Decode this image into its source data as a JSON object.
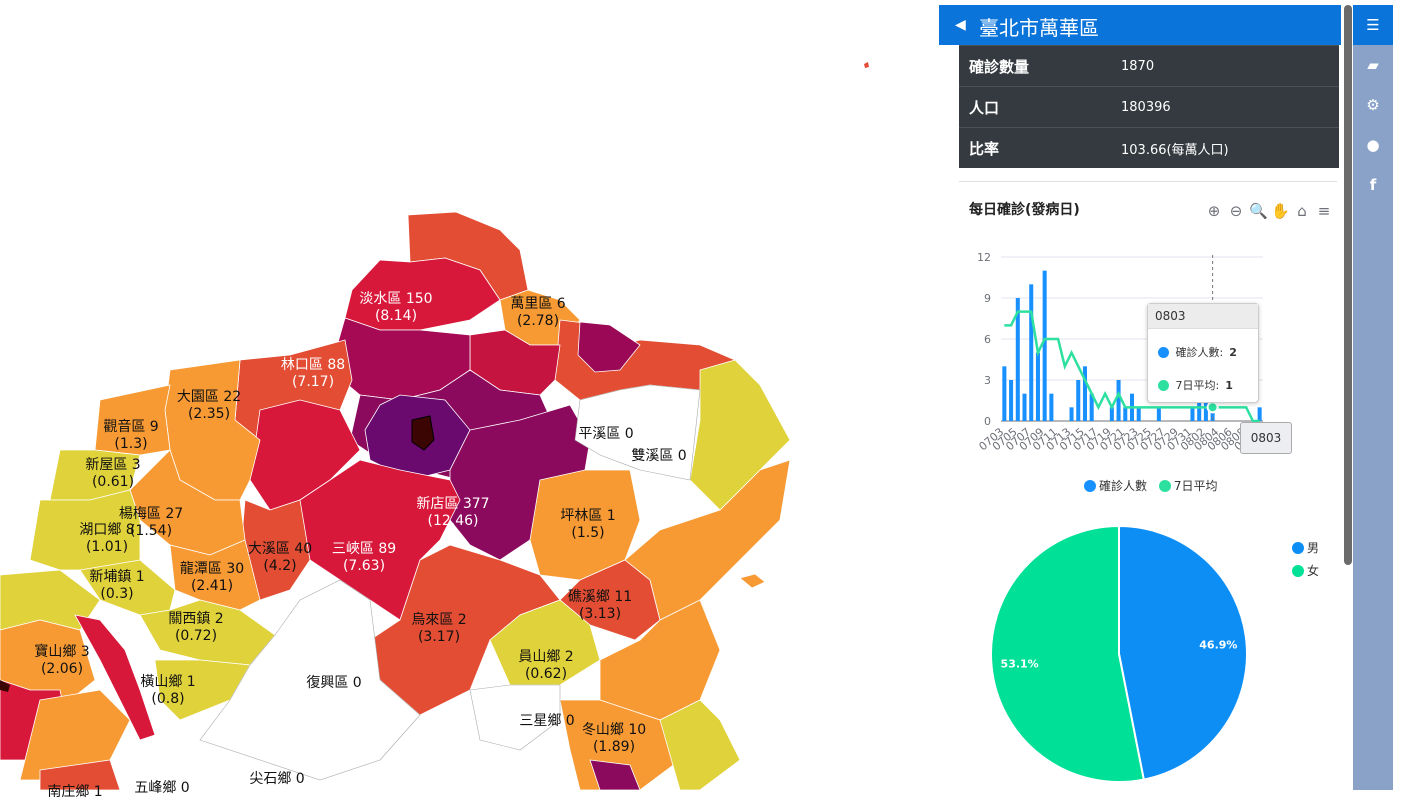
{
  "colors": {
    "panel_blue": "#0a74da",
    "table_dark": "#343a40",
    "series_confirmed": "#1890ff",
    "series_avg": "#2de0a0",
    "pie_male": "#0d8ef5",
    "pie_female": "#00e096",
    "rail": "#8aa2c8"
  },
  "map": {
    "labels": [
      {
        "name": "淡水區 150",
        "ratio": "(8.14)"
      },
      {
        "name": "萬里區 6",
        "ratio": "(2.78)"
      },
      {
        "name": "林口區 88",
        "ratio": "(7.17)"
      },
      {
        "name": "大園區 22",
        "ratio": "(2.35)"
      },
      {
        "name": "觀音區 9",
        "ratio": "(1.3)"
      },
      {
        "name": "新屋區 3",
        "ratio": "(0.61)"
      },
      {
        "name": "楊梅區 27",
        "ratio": "(1.54)"
      },
      {
        "name": "湖口鄉 8",
        "ratio": "(1.01)"
      },
      {
        "name": "新埔鎮 1",
        "ratio": "(0.3)"
      },
      {
        "name": "龍潭區 30",
        "ratio": "(2.41)"
      },
      {
        "name": "大溪區 40",
        "ratio": "(4.2)"
      },
      {
        "name": "三峽區 89",
        "ratio": "(7.63)"
      },
      {
        "name": "新店區 377",
        "ratio": "(12.46)"
      },
      {
        "name": "平溪區 0",
        "ratio": ""
      },
      {
        "name": "雙溪區 0",
        "ratio": ""
      },
      {
        "name": "坪林區 1",
        "ratio": "(1.5)"
      },
      {
        "name": "礁溪鄉 11",
        "ratio": "(3.13)"
      },
      {
        "name": "烏來區 2",
        "ratio": "(3.17)"
      },
      {
        "name": "關西鎮 2",
        "ratio": "(0.72)"
      },
      {
        "name": "寶山鄉 3",
        "ratio": "(2.06)"
      },
      {
        "name": "橫山鄉 1",
        "ratio": "(0.8)"
      },
      {
        "name": "復興區 0",
        "ratio": ""
      },
      {
        "name": "員山鄉 2",
        "ratio": "(0.62)"
      },
      {
        "name": "三星鄉 0",
        "ratio": ""
      },
      {
        "name": "冬山鄉 10",
        "ratio": "(1.89)"
      },
      {
        "name": "尖石鄉 0",
        "ratio": ""
      },
      {
        "name": "五峰鄉 0",
        "ratio": ""
      },
      {
        "name": "南庄鄉 1",
        "ratio": ""
      }
    ]
  },
  "panel": {
    "title": "臺北市萬華區",
    "back_icon": "caret-left-icon",
    "info": [
      {
        "key": "確診數量",
        "value": "1870"
      },
      {
        "key": "人口",
        "value": "180396"
      },
      {
        "key": "比率",
        "value": "103.66(每萬人口)"
      }
    ],
    "chart_title": "每日確診(發病日)",
    "toolbar": [
      "zoom-in-icon",
      "zoom-out-icon",
      "zoom-select-icon",
      "pan-icon",
      "home-icon",
      "menu-icon"
    ]
  },
  "chart_data": [
    {
      "type": "bar",
      "title": "每日確診(發病日)",
      "xlabel": "",
      "ylabel": "",
      "ylim": [
        0,
        12
      ],
      "yticks": [
        0,
        3,
        6,
        9,
        12
      ],
      "x_tick_labels": [
        "0703",
        "0705",
        "0707",
        "0709",
        "0711",
        "0713",
        "0715",
        "0717",
        "0719",
        "0721",
        "0723",
        "0725",
        "0727",
        "0729",
        "0731",
        "0802",
        "0804",
        "0806",
        "0808",
        "0810"
      ],
      "categories": [
        "0703",
        "0704",
        "0705",
        "0706",
        "0707",
        "0708",
        "0709",
        "0710",
        "0711",
        "0712",
        "0713",
        "0714",
        "0715",
        "0716",
        "0717",
        "0718",
        "0719",
        "0720",
        "0721",
        "0722",
        "0723",
        "0724",
        "0725",
        "0726",
        "0727",
        "0728",
        "0729",
        "0730",
        "0731",
        "0801",
        "0802",
        "0803",
        "0804",
        "0805",
        "0806",
        "0807",
        "0808",
        "0809",
        "0810"
      ],
      "series": [
        {
          "name": "確診人數",
          "type": "bar",
          "values": [
            4,
            3,
            9,
            2,
            10,
            5,
            11,
            2,
            0,
            0,
            1,
            3,
            4,
            2,
            0,
            0,
            1,
            3,
            1,
            2,
            1,
            0,
            0,
            1,
            0,
            0,
            0,
            0,
            1,
            2,
            2,
            2,
            0,
            0,
            0,
            0,
            0,
            0,
            1
          ]
        },
        {
          "name": "7日平均",
          "type": "line",
          "values": [
            7,
            7,
            8,
            8,
            8,
            5,
            6,
            6,
            6,
            4,
            5,
            4,
            3,
            2,
            1,
            2,
            1,
            2,
            1,
            1,
            1,
            1,
            1,
            1,
            1,
            1,
            1,
            1,
            1,
            1,
            1,
            1,
            1,
            1,
            1,
            1,
            1,
            0,
            0
          ]
        }
      ],
      "legend": "bottom",
      "grid": true,
      "tooltip": {
        "title": "0803",
        "rows": [
          {
            "name": "確診人數:",
            "value": "2"
          },
          {
            "name": "7日平均:",
            "value": "1"
          }
        ]
      },
      "axis_pointer_label": "0803"
    },
    {
      "type": "pie",
      "series": [
        {
          "name": "男",
          "value": 46.9,
          "label": "46.9%"
        },
        {
          "name": "女",
          "value": 53.1,
          "label": "53.1%"
        }
      ],
      "legend": "top-right"
    }
  ],
  "rail": {
    "buttons": [
      "menu-icon",
      "book-icon",
      "gear-icon",
      "github-icon",
      "facebook-icon"
    ]
  }
}
